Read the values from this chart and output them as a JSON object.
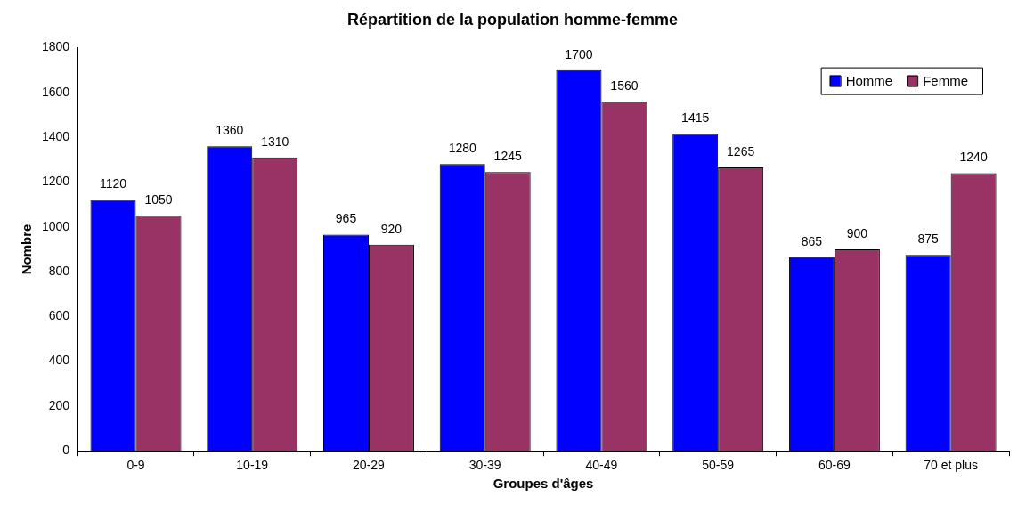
{
  "chart_data": {
    "type": "bar",
    "title": "Répartition de la population homme-femme",
    "xlabel": "Groupes d'âges",
    "ylabel": "Nombre",
    "categories": [
      "0-9",
      "10-19",
      "20-29",
      "30-39",
      "40-49",
      "50-59",
      "60-69",
      "70 et plus"
    ],
    "series": [
      {
        "name": "Homme",
        "color": "#0000ff",
        "values": [
          1120,
          1360,
          965,
          1280,
          1700,
          1415,
          865,
          875
        ]
      },
      {
        "name": "Femme",
        "color": "#993366",
        "values": [
          1050,
          1310,
          920,
          1245,
          1560,
          1265,
          900,
          1240
        ]
      }
    ],
    "ylim": [
      0,
      1800
    ],
    "yticks": [
      0,
      200,
      400,
      600,
      800,
      1000,
      1200,
      1400,
      1600,
      1800
    ],
    "grid": false,
    "legend": "top right",
    "data_labels": true
  }
}
